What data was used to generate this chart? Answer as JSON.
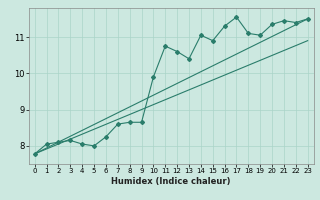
{
  "xlabel": "Humidex (Indice chaleur)",
  "bg_color": "#cce8e0",
  "grid_color": "#aad4c8",
  "line_color": "#2a7d6b",
  "spine_color": "#888888",
  "xlim": [
    -0.5,
    23.5
  ],
  "ylim": [
    7.5,
    11.8
  ],
  "xticks": [
    0,
    1,
    2,
    3,
    4,
    5,
    6,
    7,
    8,
    9,
    10,
    11,
    12,
    13,
    14,
    15,
    16,
    17,
    18,
    19,
    20,
    21,
    22,
    23
  ],
  "yticks": [
    8,
    9,
    10,
    11
  ],
  "data_x": [
    0,
    1,
    2,
    3,
    4,
    5,
    6,
    7,
    8,
    9,
    10,
    11,
    12,
    13,
    14,
    15,
    16,
    17,
    18,
    19,
    20,
    21,
    22,
    23
  ],
  "data_y": [
    7.78,
    8.05,
    8.1,
    8.15,
    8.05,
    8.0,
    8.25,
    8.6,
    8.65,
    8.65,
    9.9,
    10.75,
    10.6,
    10.4,
    11.05,
    10.9,
    11.3,
    11.55,
    11.1,
    11.05,
    11.35,
    11.45,
    11.4,
    11.5
  ],
  "trend1_x": [
    0,
    23
  ],
  "trend1_y": [
    7.78,
    11.5
  ],
  "trend2_x": [
    0,
    23
  ],
  "trend2_y": [
    7.78,
    10.9
  ]
}
